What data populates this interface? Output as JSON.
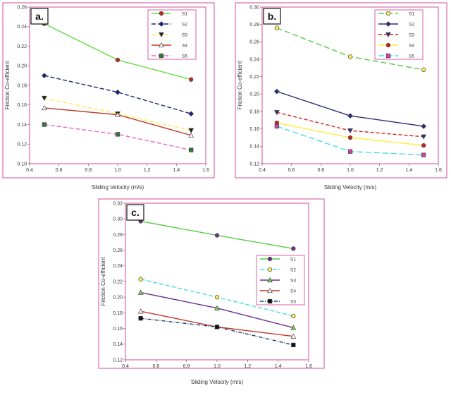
{
  "chart_data": [
    {
      "type": "line",
      "panel_label": "a",
      "xlabel": "Sliding Velocity (m/s)",
      "ylabel": "Friction Co-efficient",
      "xlim": [
        0.4,
        1.6
      ],
      "ylim": [
        0.1,
        0.26
      ],
      "xticks": [
        "0.4",
        "0.6",
        "0.8",
        "1.0",
        "1.2",
        "1.4",
        "1.6"
      ],
      "yticks": [
        "0.10",
        "0.12",
        "0.14",
        "0.16",
        "0.18",
        "0.20",
        "0.22",
        "0.24",
        "0.26"
      ],
      "x": [
        0.5,
        1.0,
        1.5
      ],
      "legend_position": "top-right",
      "series": [
        {
          "name": "S1",
          "values": [
            0.243,
            0.206,
            0.186
          ],
          "color": "#66dd44",
          "marker_color": "#cc2222",
          "marker": "circle",
          "dash": ""
        },
        {
          "name": "S2",
          "values": [
            0.19,
            0.173,
            0.151
          ],
          "color": "#1a237e",
          "marker_color": "#1a237e",
          "marker": "diamond",
          "dash": "6,3"
        },
        {
          "name": "S3",
          "values": [
            0.167,
            0.151,
            0.134
          ],
          "color": "#ffee55",
          "marker_color": "#222222",
          "marker": "triangle-down",
          "dash": "6,3"
        },
        {
          "name": "S4",
          "values": [
            0.157,
            0.15,
            0.129
          ],
          "color": "#c0392b",
          "marker_color": "#ffffff",
          "marker": "triangle",
          "dash": ""
        },
        {
          "name": "S5",
          "values": [
            0.14,
            0.13,
            0.114
          ],
          "color": "#ee66cc",
          "marker_color": "#2e7d32",
          "marker": "square",
          "dash": "6,3"
        }
      ]
    },
    {
      "type": "line",
      "panel_label": "b",
      "xlabel": "Sliding Velocity (m/s)",
      "ylabel": "Friction Co-efficient",
      "xlim": [
        0.4,
        1.6
      ],
      "ylim": [
        0.12,
        0.3
      ],
      "xticks": [
        "0.4",
        "0.6",
        "0.8",
        "1.0",
        "1.2",
        "1.4",
        "1.6"
      ],
      "yticks": [
        "0.12",
        "0.14",
        "0.16",
        "0.18",
        "0.20",
        "0.22",
        "0.24",
        "0.26",
        "0.28",
        "0.30"
      ],
      "x": [
        0.5,
        1.0,
        1.5
      ],
      "legend_position": "top-right",
      "series": [
        {
          "name": "S1",
          "values": [
            0.276,
            0.243,
            0.228
          ],
          "color": "#55cc44",
          "marker_color": "#ffee55",
          "marker": "circle",
          "dash": "8,4"
        },
        {
          "name": "S2",
          "values": [
            0.203,
            0.175,
            0.163
          ],
          "color": "#2c2c7a",
          "marker_color": "#2c2c7a",
          "marker": "diamond",
          "dash": ""
        },
        {
          "name": "S3",
          "values": [
            0.179,
            0.158,
            0.151
          ],
          "color": "#cc2222",
          "marker_color": "#2c2c7a",
          "marker": "triangle-down",
          "dash": "5,3"
        },
        {
          "name": "S4",
          "values": [
            0.167,
            0.15,
            0.141
          ],
          "color": "#ffee33",
          "marker_color": "#cc2222",
          "marker": "circle",
          "dash": ""
        },
        {
          "name": "S5",
          "values": [
            0.163,
            0.134,
            0.13
          ],
          "color": "#44dddd",
          "marker_color": "#cc44aa",
          "marker": "square",
          "dash": "8,4"
        }
      ]
    },
    {
      "type": "line",
      "panel_label": "c",
      "xlabel": "Sliding Velocity (m/s)",
      "ylabel": "Friction Co-efficient",
      "xlim": [
        0.4,
        1.6
      ],
      "ylim": [
        0.12,
        0.32
      ],
      "xticks": [
        "0.4",
        "0.6",
        "0.8",
        "1.0",
        "1.2",
        "1.4",
        "1.6"
      ],
      "yticks": [
        "0.12",
        "0.14",
        "0.16",
        "0.18",
        "0.20",
        "0.22",
        "0.24",
        "0.26",
        "0.28",
        "0.30",
        "0.32"
      ],
      "x": [
        0.5,
        1.0,
        1.5
      ],
      "legend_position": "right",
      "series": [
        {
          "name": "S1",
          "values": [
            0.297,
            0.279,
            0.262
          ],
          "color": "#55cc44",
          "marker_color": "#7b2d8e",
          "marker": "circle",
          "dash": ""
        },
        {
          "name": "S2",
          "values": [
            0.223,
            0.2,
            0.176
          ],
          "color": "#44dddd",
          "marker_color": "#ffee55",
          "marker": "circle",
          "dash": "6,3"
        },
        {
          "name": "S3",
          "values": [
            0.206,
            0.186,
            0.161
          ],
          "color": "#6a2c91",
          "marker_color": "#66dd44",
          "marker": "triangle",
          "dash": ""
        },
        {
          "name": "S4",
          "values": [
            0.182,
            0.162,
            0.15
          ],
          "color": "#c0392b",
          "marker_color": "#ffffff",
          "marker": "triangle",
          "dash": ""
        },
        {
          "name": "S5",
          "values": [
            0.173,
            0.162,
            0.139
          ],
          "color": "#1a3a6e",
          "marker_color": "#111111",
          "marker": "square",
          "dash": "5,2,1,2"
        }
      ]
    }
  ]
}
